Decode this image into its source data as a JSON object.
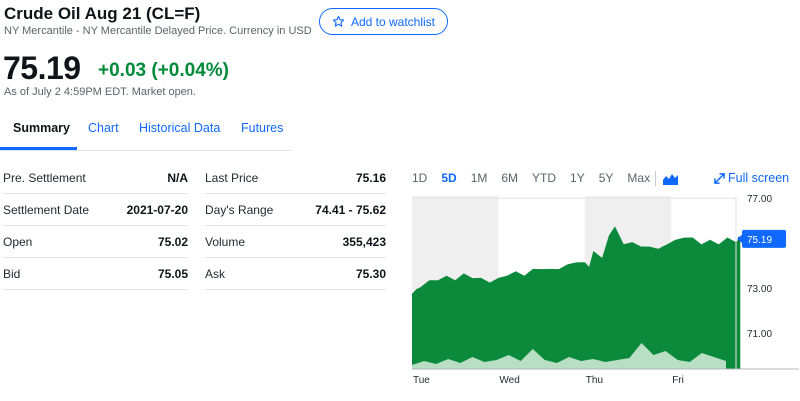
{
  "quote": {
    "title": "Crude Oil Aug 21 (CL=F)",
    "subtitle": "NY Mercantile - NY Mercantile Delayed Price. Currency in USD",
    "watchlist_label": "Add to watchlist",
    "price": "75.19",
    "change": "+0.03 (+0.04%)",
    "as_of": "As of July 2 4:59PM EDT. Market open."
  },
  "tabs": [
    "Summary",
    "Chart",
    "Historical Data",
    "Futures"
  ],
  "stats_left": [
    {
      "label": "Pre. Settlement",
      "value": "N/A"
    },
    {
      "label": "Settlement Date",
      "value": "2021-07-20"
    },
    {
      "label": "Open",
      "value": "75.02"
    },
    {
      "label": "Bid",
      "value": "75.05"
    }
  ],
  "stats_right": [
    {
      "label": "Last Price",
      "value": "75.16"
    },
    {
      "label": "Day's Range",
      "value": "74.41 - 75.62"
    },
    {
      "label": "Volume",
      "value": "355,423"
    },
    {
      "label": "Ask",
      "value": "75.30"
    }
  ],
  "chart_controls": {
    "ranges": [
      "1D",
      "5D",
      "1M",
      "6M",
      "YTD",
      "1Y",
      "5Y",
      "Max"
    ],
    "active_range": "5D",
    "chart_type_icon": "mountain-chart-icon",
    "fullscreen_label": "Full screen",
    "fullscreen_icon": "expand-arrows-icon"
  },
  "colors": {
    "accent": "#0f69ff",
    "positive": "#008a3a",
    "area_fill": "#0c8a3c",
    "volume_fill": "#d7ecdc",
    "session_shade": "#efefef"
  },
  "chart_data": {
    "type": "area",
    "x_ticks": [
      "Tue",
      "Wed",
      "Thu",
      "Fri"
    ],
    "y_ticks": [
      77.0,
      73.0,
      71.0
    ],
    "y_tick_labels": [
      "77.00",
      "73.00",
      "71.00"
    ],
    "ylim": [
      69.4,
      77.1
    ],
    "x_range": [
      0,
      4
    ],
    "current_value": 75.19,
    "current_label": "75.19",
    "shaded_sessions": [
      [
        0,
        1
      ],
      [
        2,
        3
      ]
    ],
    "series": [
      {
        "x": [
          0,
          0.05,
          0.1,
          0.2,
          0.3,
          0.4,
          0.5,
          0.6,
          0.7,
          0.8,
          0.9,
          1.0,
          1.1,
          1.2,
          1.3,
          1.4,
          1.5,
          1.6,
          1.7,
          1.8,
          1.9,
          2.0,
          2.05,
          2.1,
          2.2,
          2.28,
          2.35,
          2.45,
          2.55,
          2.65,
          2.75,
          2.85,
          2.95,
          3.05,
          3.15,
          3.25,
          3.35,
          3.45,
          3.55,
          3.65,
          3.75,
          3.8
        ],
        "values": [
          72.8,
          72.9,
          73.1,
          73.3,
          73.4,
          73.5,
          73.4,
          73.6,
          73.5,
          73.4,
          73.3,
          73.4,
          73.6,
          73.7,
          73.6,
          73.8,
          73.9,
          73.8,
          73.9,
          74.0,
          74.2,
          74.1,
          74.0,
          74.6,
          74.4,
          75.3,
          75.8,
          74.9,
          75.1,
          74.8,
          74.9,
          74.7,
          75.0,
          75.1,
          75.3,
          75.2,
          75.0,
          75.1,
          75.0,
          75.2,
          75.1,
          75.19
        ]
      }
    ]
  }
}
